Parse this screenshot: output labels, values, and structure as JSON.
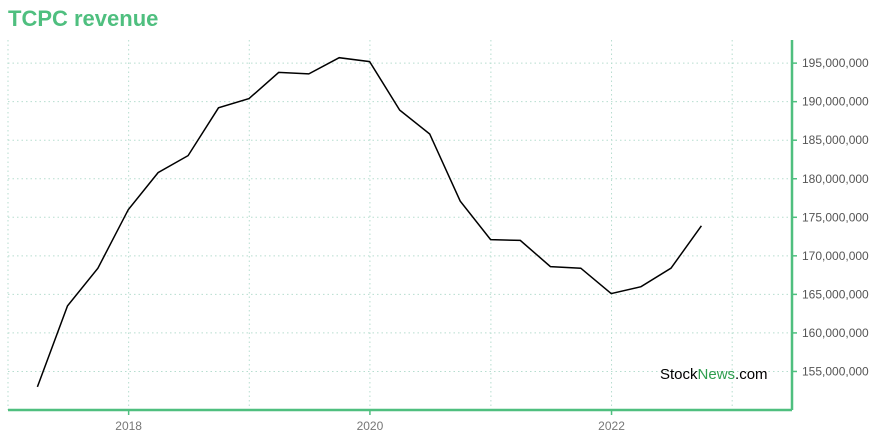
{
  "header": {
    "title": "TCPC revenue"
  },
  "watermark": {
    "part1": "Stock",
    "part2": "News",
    "part3": ".com"
  },
  "colors": {
    "accent": "#4fbf7f",
    "line": "#000000",
    "grid": "#b6ddcf"
  },
  "chart_data": {
    "type": "line",
    "title": "TCPC revenue",
    "xlabel": "",
    "ylabel": "",
    "x_ticks": [
      "2018",
      "2020",
      "2022"
    ],
    "y_ticks": [
      "155,000,000",
      "160,000,000",
      "165,000,000",
      "170,000,000",
      "175,000,000",
      "180,000,000",
      "185,000,000",
      "190,000,000",
      "195,000,000"
    ],
    "ylim": [
      150000000,
      198000000
    ],
    "xlim": [
      "2017-01-01",
      "2023-07-01"
    ],
    "grid": true,
    "series": [
      {
        "x": [
          "2017-03-31",
          "2017-06-30",
          "2017-09-30",
          "2017-12-31",
          "2018-03-31",
          "2018-06-30",
          "2018-09-30",
          "2018-12-31",
          "2019-03-31",
          "2019-06-30",
          "2019-09-30",
          "2019-12-31",
          "2020-03-31",
          "2020-06-30",
          "2020-09-30",
          "2020-12-31",
          "2021-03-31",
          "2021-06-30",
          "2021-09-30",
          "2021-12-31",
          "2022-03-31",
          "2022-06-30",
          "2022-09-30"
        ],
        "values": [
          153000000,
          163500000,
          168400000,
          176000000,
          180800000,
          183000000,
          189200000,
          190400000,
          193800000,
          193600000,
          195700000,
          195200000,
          188900000,
          185800000,
          177100000,
          172100000,
          172000000,
          168600000,
          168400000,
          165100000,
          166000000,
          168400000,
          173900000
        ]
      }
    ]
  }
}
